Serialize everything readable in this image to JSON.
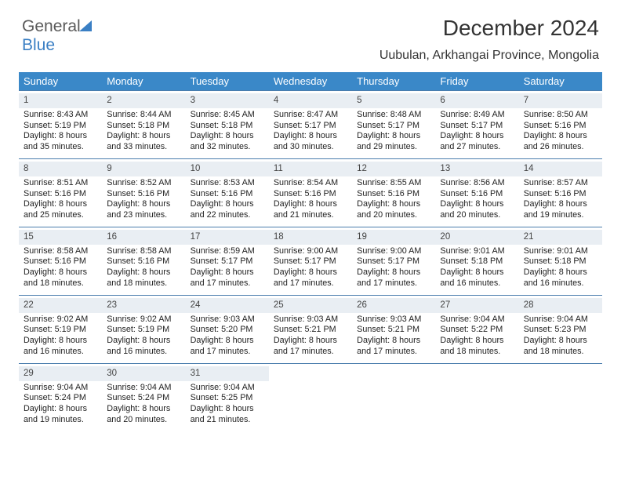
{
  "logo": {
    "part1": "General",
    "part2": "Blue"
  },
  "title": "December 2024",
  "location": "Uubulan, Arkhangai Province, Mongolia",
  "colors": {
    "header_bg": "#3a88c8",
    "daynum_bg": "#e9eef3",
    "week_border": "#4a7dad",
    "logo_blue": "#3a7fc4"
  },
  "weekdays": [
    "Sunday",
    "Monday",
    "Tuesday",
    "Wednesday",
    "Thursday",
    "Friday",
    "Saturday"
  ],
  "days": [
    {
      "n": 1,
      "sunrise": "8:43 AM",
      "sunset": "5:19 PM",
      "day_h": 8,
      "day_m": 35
    },
    {
      "n": 2,
      "sunrise": "8:44 AM",
      "sunset": "5:18 PM",
      "day_h": 8,
      "day_m": 33
    },
    {
      "n": 3,
      "sunrise": "8:45 AM",
      "sunset": "5:18 PM",
      "day_h": 8,
      "day_m": 32
    },
    {
      "n": 4,
      "sunrise": "8:47 AM",
      "sunset": "5:17 PM",
      "day_h": 8,
      "day_m": 30
    },
    {
      "n": 5,
      "sunrise": "8:48 AM",
      "sunset": "5:17 PM",
      "day_h": 8,
      "day_m": 29
    },
    {
      "n": 6,
      "sunrise": "8:49 AM",
      "sunset": "5:17 PM",
      "day_h": 8,
      "day_m": 27
    },
    {
      "n": 7,
      "sunrise": "8:50 AM",
      "sunset": "5:16 PM",
      "day_h": 8,
      "day_m": 26
    },
    {
      "n": 8,
      "sunrise": "8:51 AM",
      "sunset": "5:16 PM",
      "day_h": 8,
      "day_m": 25
    },
    {
      "n": 9,
      "sunrise": "8:52 AM",
      "sunset": "5:16 PM",
      "day_h": 8,
      "day_m": 23
    },
    {
      "n": 10,
      "sunrise": "8:53 AM",
      "sunset": "5:16 PM",
      "day_h": 8,
      "day_m": 22
    },
    {
      "n": 11,
      "sunrise": "8:54 AM",
      "sunset": "5:16 PM",
      "day_h": 8,
      "day_m": 21
    },
    {
      "n": 12,
      "sunrise": "8:55 AM",
      "sunset": "5:16 PM",
      "day_h": 8,
      "day_m": 20
    },
    {
      "n": 13,
      "sunrise": "8:56 AM",
      "sunset": "5:16 PM",
      "day_h": 8,
      "day_m": 20
    },
    {
      "n": 14,
      "sunrise": "8:57 AM",
      "sunset": "5:16 PM",
      "day_h": 8,
      "day_m": 19
    },
    {
      "n": 15,
      "sunrise": "8:58 AM",
      "sunset": "5:16 PM",
      "day_h": 8,
      "day_m": 18
    },
    {
      "n": 16,
      "sunrise": "8:58 AM",
      "sunset": "5:16 PM",
      "day_h": 8,
      "day_m": 18
    },
    {
      "n": 17,
      "sunrise": "8:59 AM",
      "sunset": "5:17 PM",
      "day_h": 8,
      "day_m": 17
    },
    {
      "n": 18,
      "sunrise": "9:00 AM",
      "sunset": "5:17 PM",
      "day_h": 8,
      "day_m": 17
    },
    {
      "n": 19,
      "sunrise": "9:00 AM",
      "sunset": "5:17 PM",
      "day_h": 8,
      "day_m": 17
    },
    {
      "n": 20,
      "sunrise": "9:01 AM",
      "sunset": "5:18 PM",
      "day_h": 8,
      "day_m": 16
    },
    {
      "n": 21,
      "sunrise": "9:01 AM",
      "sunset": "5:18 PM",
      "day_h": 8,
      "day_m": 16
    },
    {
      "n": 22,
      "sunrise": "9:02 AM",
      "sunset": "5:19 PM",
      "day_h": 8,
      "day_m": 16
    },
    {
      "n": 23,
      "sunrise": "9:02 AM",
      "sunset": "5:19 PM",
      "day_h": 8,
      "day_m": 16
    },
    {
      "n": 24,
      "sunrise": "9:03 AM",
      "sunset": "5:20 PM",
      "day_h": 8,
      "day_m": 17
    },
    {
      "n": 25,
      "sunrise": "9:03 AM",
      "sunset": "5:21 PM",
      "day_h": 8,
      "day_m": 17
    },
    {
      "n": 26,
      "sunrise": "9:03 AM",
      "sunset": "5:21 PM",
      "day_h": 8,
      "day_m": 17
    },
    {
      "n": 27,
      "sunrise": "9:04 AM",
      "sunset": "5:22 PM",
      "day_h": 8,
      "day_m": 18
    },
    {
      "n": 28,
      "sunrise": "9:04 AM",
      "sunset": "5:23 PM",
      "day_h": 8,
      "day_m": 18
    },
    {
      "n": 29,
      "sunrise": "9:04 AM",
      "sunset": "5:24 PM",
      "day_h": 8,
      "day_m": 19
    },
    {
      "n": 30,
      "sunrise": "9:04 AM",
      "sunset": "5:24 PM",
      "day_h": 8,
      "day_m": 20
    },
    {
      "n": 31,
      "sunrise": "9:04 AM",
      "sunset": "5:25 PM",
      "day_h": 8,
      "day_m": 21
    }
  ],
  "labels": {
    "sunrise": "Sunrise: ",
    "sunset": "Sunset: ",
    "daylight_pre": "Daylight: ",
    "hours": " hours",
    "and": "and ",
    "minutes": " minutes."
  }
}
